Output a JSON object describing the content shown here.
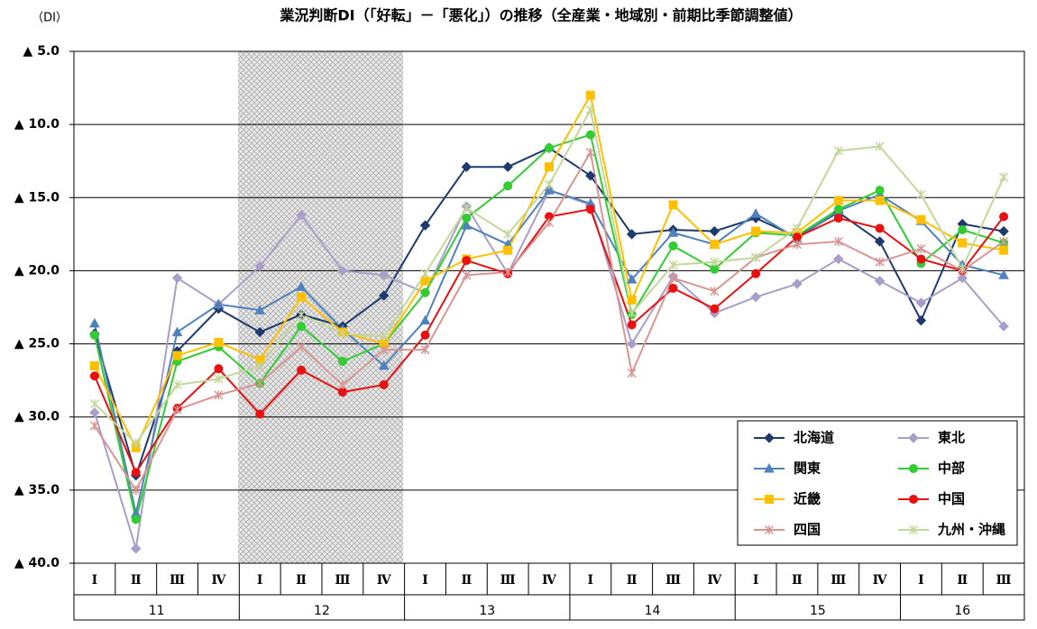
{
  "chart_data": {
    "type": "line",
    "title": "業況判断DI（「好転」－「悪化」）の推移（全産業・地域別・前期比季節調整値）",
    "y_label": "（DI）",
    "categories": [
      "Ⅰ",
      "Ⅱ",
      "Ⅲ",
      "Ⅳ",
      "Ⅰ",
      "Ⅱ",
      "Ⅲ",
      "Ⅳ",
      "Ⅰ",
      "Ⅱ",
      "Ⅲ",
      "Ⅳ",
      "Ⅰ",
      "Ⅱ",
      "Ⅲ",
      "Ⅳ",
      "Ⅰ",
      "Ⅱ",
      "Ⅲ",
      "Ⅳ",
      "Ⅰ",
      "Ⅱ",
      "Ⅲ"
    ],
    "groups": [
      "11",
      "12",
      "13",
      "14",
      "15",
      "16"
    ],
    "ylim": [
      -40,
      -5
    ],
    "yticks": [
      {
        "value": -5,
        "label": "▲ 5.0"
      },
      {
        "value": -10,
        "label": "▲ 10.0"
      },
      {
        "value": -15,
        "label": "▲ 15.0"
      },
      {
        "value": -20,
        "label": "▲ 20.0"
      },
      {
        "value": -25,
        "label": "▲ 25.0"
      },
      {
        "value": -30,
        "label": "▲ 30.0"
      },
      {
        "value": -35,
        "label": "▲ 35.0"
      },
      {
        "value": -40,
        "label": "▲ 40.0"
      }
    ],
    "grid": true,
    "legend": "lower right",
    "series": [
      {
        "name": "北海道",
        "color": "#1f3a6e",
        "marker": "diamond",
        "values": [
          -24.3,
          -34.0,
          -25.5,
          -22.6,
          -24.2,
          -23.0,
          -23.8,
          -21.7,
          -16.9,
          -12.9,
          -12.9,
          -11.6,
          -13.5,
          -17.5,
          -17.2,
          -17.3,
          -16.4,
          -17.7,
          -16.0,
          -18.0,
          -23.4,
          -16.8,
          -17.3
        ]
      },
      {
        "name": "東北",
        "color": "#a89ec9",
        "marker": "diamond",
        "values": [
          -29.7,
          -39.0,
          -20.5,
          -22.3,
          -19.7,
          -16.2,
          -20.0,
          -20.3,
          -21.5,
          -15.6,
          -20.2,
          -14.5,
          -15.5,
          -25.0,
          -20.4,
          -22.9,
          -21.8,
          -20.9,
          -19.2,
          -20.7,
          -22.2,
          -20.5,
          -23.8
        ]
      },
      {
        "name": "関東",
        "color": "#4f81bd",
        "marker": "triangle",
        "values": [
          -23.6,
          -36.6,
          -24.2,
          -22.3,
          -22.7,
          -21.1,
          -24.0,
          -26.5,
          -23.4,
          -16.9,
          -18.2,
          -14.5,
          -15.4,
          -20.6,
          -17.4,
          -18.2,
          -16.1,
          -17.8,
          -15.9,
          -14.8,
          -16.6,
          -19.6,
          -20.3
        ]
      },
      {
        "name": "中部",
        "color": "#33cc33",
        "marker": "circle",
        "values": [
          -24.4,
          -37.0,
          -26.2,
          -25.2,
          -27.7,
          -23.8,
          -26.2,
          -25.0,
          -21.5,
          -16.4,
          -14.2,
          -11.6,
          -10.7,
          -23.0,
          -18.3,
          -19.9,
          -17.4,
          -17.6,
          -15.8,
          -14.5,
          -19.5,
          -17.2,
          -18.1
        ]
      },
      {
        "name": "近畿",
        "color": "#ffc000",
        "marker": "square",
        "values": [
          -26.5,
          -32.1,
          -25.8,
          -24.9,
          -26.1,
          -21.8,
          -24.2,
          -25.0,
          -20.7,
          -19.2,
          -18.6,
          -12.9,
          -8.0,
          -22.0,
          -15.5,
          -18.2,
          -17.3,
          -17.4,
          -15.2,
          -15.2,
          -16.5,
          -18.1,
          -18.6
        ]
      },
      {
        "name": "中国",
        "color": "#e81010",
        "marker": "circle",
        "values": [
          -27.2,
          -33.8,
          -29.4,
          -26.7,
          -29.8,
          -26.8,
          -28.3,
          -27.8,
          -24.4,
          -19.3,
          -20.2,
          -16.3,
          -15.8,
          -23.7,
          -21.2,
          -22.6,
          -20.2,
          -17.7,
          -16.4,
          -17.1,
          -19.2,
          -20.0,
          -16.3
        ]
      },
      {
        "name": "四国",
        "color": "#d99594",
        "marker": "x",
        "values": [
          -30.6,
          -35.0,
          -29.5,
          -28.5,
          -27.7,
          -25.2,
          -27.8,
          -25.4,
          -25.4,
          -20.3,
          -20.1,
          -16.7,
          -11.9,
          -27.0,
          -20.5,
          -21.4,
          -19.1,
          -18.2,
          -18.0,
          -19.4,
          -18.5,
          -20.0,
          -18.0
        ]
      },
      {
        "name": "九州・沖縄",
        "color": "#c4d79b",
        "marker": "x",
        "values": [
          -29.1,
          -31.8,
          -27.8,
          -27.4,
          -26.5,
          -23.0,
          -24.3,
          -24.5,
          -20.2,
          -15.7,
          -17.5,
          -14.1,
          -9.0,
          -22.9,
          -19.6,
          -19.4,
          -19.1,
          -17.1,
          -11.8,
          -11.5,
          -14.8,
          -19.8,
          -13.6
        ]
      }
    ]
  }
}
